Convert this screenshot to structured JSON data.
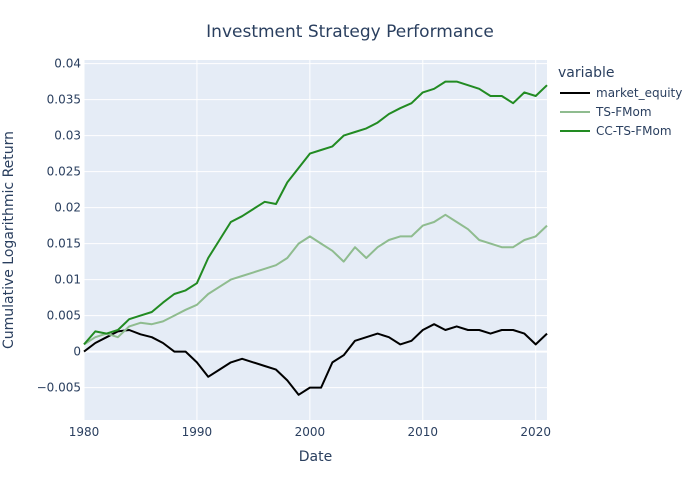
{
  "chart_data": {
    "type": "line",
    "title": "Investment Strategy Performance",
    "xlabel": "Date",
    "ylabel": "Cumulative Logarithmic Return",
    "xlim": [
      1980,
      2021
    ],
    "ylim": [
      -0.0095,
      0.0405
    ],
    "x_ticks": [
      1980,
      1990,
      2000,
      2010,
      2020
    ],
    "x_tick_labels": [
      "1980",
      "1990",
      "2000",
      "2010",
      "2020"
    ],
    "y_ticks": [
      -0.005,
      0,
      0.005,
      0.01,
      0.015,
      0.02,
      0.025,
      0.03,
      0.035,
      0.04
    ],
    "y_tick_labels": [
      "−0.005",
      "0",
      "0.005",
      "0.01",
      "0.015",
      "0.02",
      "0.025",
      "0.03",
      "0.035",
      "0.04"
    ],
    "grid": true,
    "legend": {
      "title": "variable",
      "placement": "right"
    },
    "series": [
      {
        "name": "market_equity",
        "color": "#000000",
        "x": [
          1980,
          1981,
          1982,
          1983,
          1984,
          1985,
          1986,
          1987,
          1988,
          1989,
          1990,
          1991,
          1992,
          1993,
          1994,
          1995,
          1996,
          1997,
          1998,
          1999,
          2000,
          2001,
          2002,
          2003,
          2004,
          2005,
          2006,
          2007,
          2008,
          2009,
          2010,
          2011,
          2012,
          2013,
          2014,
          2015,
          2016,
          2017,
          2018,
          2019,
          2020,
          2021
        ],
        "y": [
          0.0,
          0.0012,
          0.002,
          0.0028,
          0.003,
          0.0024,
          0.002,
          0.0012,
          0.0,
          0.0,
          -0.0015,
          -0.0035,
          -0.0025,
          -0.0015,
          -0.001,
          -0.0015,
          -0.002,
          -0.0025,
          -0.004,
          -0.006,
          -0.005,
          -0.005,
          -0.0015,
          -0.0005,
          0.0015,
          0.002,
          0.0025,
          0.002,
          0.001,
          0.0015,
          0.003,
          0.0038,
          0.003,
          0.0035,
          0.003,
          0.003,
          0.0025,
          0.003,
          0.003,
          0.0025,
          0.001,
          0.0025
        ]
      },
      {
        "name": "TS-FMom",
        "color": "#8fbc8f",
        "x": [
          1980,
          1981,
          1982,
          1983,
          1984,
          1985,
          1986,
          1987,
          1988,
          1989,
          1990,
          1991,
          1992,
          1993,
          1994,
          1995,
          1996,
          1997,
          1998,
          1999,
          2000,
          2001,
          2002,
          2003,
          2004,
          2005,
          2006,
          2007,
          2008,
          2009,
          2010,
          2011,
          2012,
          2013,
          2014,
          2015,
          2016,
          2017,
          2018,
          2019,
          2020,
          2021
        ],
        "y": [
          0.001,
          0.002,
          0.0025,
          0.002,
          0.0035,
          0.004,
          0.0038,
          0.0042,
          0.005,
          0.0058,
          0.0065,
          0.008,
          0.009,
          0.01,
          0.0105,
          0.011,
          0.0115,
          0.012,
          0.013,
          0.015,
          0.016,
          0.015,
          0.014,
          0.0125,
          0.0145,
          0.013,
          0.0145,
          0.0155,
          0.016,
          0.016,
          0.0175,
          0.018,
          0.019,
          0.018,
          0.017,
          0.0155,
          0.015,
          0.0145,
          0.0145,
          0.0155,
          0.016,
          0.0175
        ]
      },
      {
        "name": "CC-TS-FMom",
        "color": "#228b22",
        "x": [
          1980,
          1981,
          1982,
          1983,
          1984,
          1985,
          1986,
          1987,
          1988,
          1989,
          1990,
          1991,
          1992,
          1993,
          1994,
          1995,
          1996,
          1997,
          1998,
          1999,
          2000,
          2001,
          2002,
          2003,
          2004,
          2005,
          2006,
          2007,
          2008,
          2009,
          2010,
          2011,
          2012,
          2013,
          2014,
          2015,
          2016,
          2017,
          2018,
          2019,
          2020,
          2021
        ],
        "y": [
          0.001,
          0.0028,
          0.0025,
          0.003,
          0.0045,
          0.005,
          0.0055,
          0.0068,
          0.008,
          0.0085,
          0.0095,
          0.013,
          0.0155,
          0.018,
          0.0188,
          0.0198,
          0.0208,
          0.0205,
          0.0235,
          0.0255,
          0.0275,
          0.028,
          0.0285,
          0.03,
          0.0305,
          0.031,
          0.0318,
          0.033,
          0.0338,
          0.0345,
          0.036,
          0.0365,
          0.0375,
          0.0375,
          0.037,
          0.0365,
          0.0355,
          0.0355,
          0.0345,
          0.036,
          0.0355,
          0.037
        ]
      }
    ]
  }
}
